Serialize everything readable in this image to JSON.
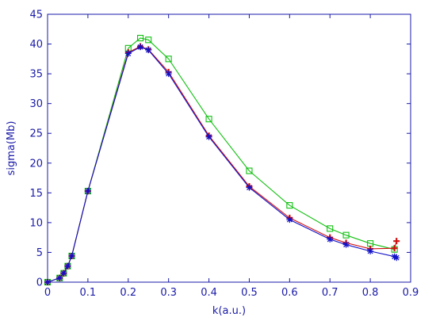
{
  "chart_data": {
    "type": "line",
    "title": "",
    "xlabel": "k(a.u.)",
    "ylabel": "sigma(Mb)",
    "xlim": [
      0,
      0.9
    ],
    "ylim": [
      0,
      45
    ],
    "xticks": [
      0,
      0.1,
      0.2,
      0.3,
      0.4,
      0.5,
      0.6,
      0.7,
      0.8,
      0.9
    ],
    "xtick_labels": [
      "0",
      "0.1",
      "0.2",
      "0.3",
      "0.4",
      "0.5",
      "0.6",
      "0.7",
      "0.8",
      "0.9"
    ],
    "yticks": [
      0,
      5,
      10,
      15,
      20,
      25,
      30,
      35,
      40,
      45
    ],
    "ytick_labels": [
      "0",
      "5",
      "10",
      "15",
      "20",
      "25",
      "30",
      "35",
      "40",
      "45"
    ],
    "grid": false,
    "legend": "none",
    "series": [
      {
        "marker": "square",
        "color": "#10c010",
        "x": [
          0,
          0.03,
          0.04,
          0.05,
          0.06,
          0.1,
          0.2,
          0.23,
          0.25,
          0.3,
          0.4,
          0.5,
          0.6,
          0.7,
          0.74,
          0.8,
          0.86
        ],
        "y": [
          0,
          0.7,
          1.5,
          2.7,
          4.4,
          15.3,
          39.3,
          41.0,
          40.7,
          37.5,
          27.4,
          18.7,
          12.9,
          9.0,
          7.9,
          6.5,
          5.5
        ]
      },
      {
        "marker": "plus",
        "color": "#d01010",
        "x": [
          0,
          0.03,
          0.04,
          0.05,
          0.06,
          0.1,
          0.2,
          0.23,
          0.25,
          0.3,
          0.4,
          0.5,
          0.6,
          0.7,
          0.74,
          0.8,
          0.86,
          0.865
        ],
        "y": [
          0,
          0.7,
          1.5,
          2.7,
          4.4,
          15.3,
          38.6,
          39.6,
          39.1,
          35.3,
          24.6,
          16.1,
          10.8,
          7.5,
          6.6,
          5.6,
          5.7,
          6.9
        ]
      },
      {
        "marker": "asterisk",
        "color": "#1010c8",
        "x": [
          0,
          0.03,
          0.04,
          0.05,
          0.06,
          0.1,
          0.2,
          0.23,
          0.25,
          0.3,
          0.4,
          0.5,
          0.6,
          0.7,
          0.74,
          0.8,
          0.86,
          0.865
        ],
        "y": [
          0,
          0.7,
          1.5,
          2.7,
          4.4,
          15.3,
          38.4,
          39.5,
          39.0,
          35.0,
          24.4,
          15.9,
          10.5,
          7.2,
          6.3,
          5.2,
          4.3,
          4.1
        ]
      }
    ]
  }
}
